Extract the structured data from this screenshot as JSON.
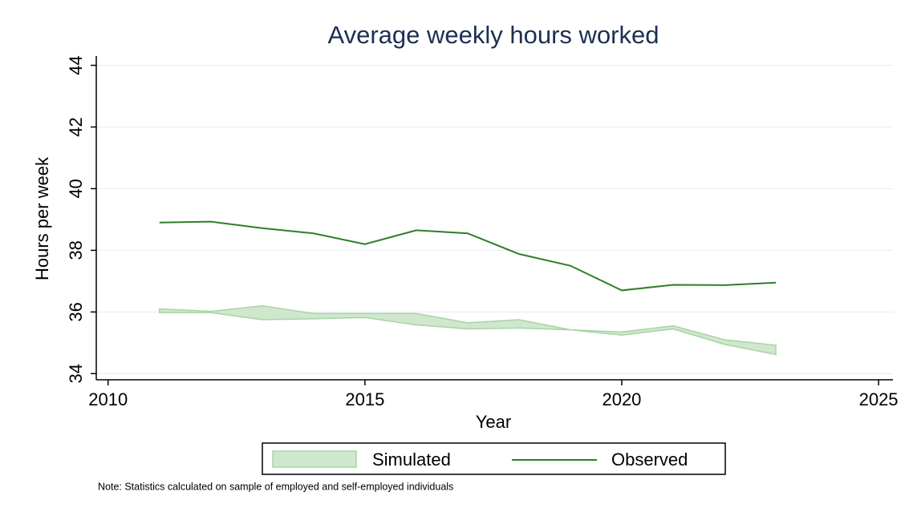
{
  "chart_data": {
    "type": "band-line",
    "title": "Average weekly hours worked",
    "x_label": "Year",
    "y_label": "Hours per week",
    "note": "Note: Statistics calculated on sample of employed and self-employed individuals",
    "x": [
      2011,
      2012,
      2013,
      2014,
      2015,
      2016,
      2017,
      2018,
      2019,
      2020,
      2021,
      2022,
      2023
    ],
    "series": [
      {
        "name": "Simulated",
        "color": "#cfe8cd",
        "stroke": "#a9d3a6",
        "lower": [
          35.98,
          35.98,
          35.75,
          35.78,
          35.82,
          35.58,
          35.45,
          35.48,
          35.42,
          35.25,
          35.45,
          34.95,
          34.62
        ],
        "upper": [
          36.1,
          36.02,
          36.2,
          35.95,
          35.95,
          35.95,
          35.65,
          35.75,
          35.42,
          35.35,
          35.55,
          35.1,
          34.92
        ]
      },
      {
        "name": "Observed",
        "color": "#2f7d2a",
        "values": [
          38.9,
          38.93,
          38.72,
          38.55,
          38.2,
          38.65,
          38.55,
          37.88,
          37.5,
          36.7,
          36.88,
          36.87,
          36.95
        ]
      }
    ],
    "xlim": [
      2009.77,
      2025.28
    ],
    "xticks": [
      2010,
      2015,
      2020,
      2025
    ],
    "ylim": [
      33.8,
      44.3
    ],
    "yticks": [
      34,
      36,
      38,
      40,
      42,
      44
    ],
    "grid": true
  }
}
